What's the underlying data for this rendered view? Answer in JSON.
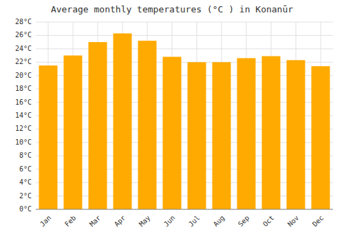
{
  "chart_data": {
    "type": "bar",
    "title": "Average monthly temperatures (°C ) in Konanūr",
    "categories": [
      "Jan",
      "Feb",
      "Mar",
      "Apr",
      "May",
      "Jun",
      "Jul",
      "Aug",
      "Sep",
      "Oct",
      "Nov",
      "Dec"
    ],
    "values": [
      21.5,
      23.0,
      25.0,
      26.3,
      25.2,
      22.8,
      22.0,
      22.0,
      22.6,
      22.9,
      22.3,
      21.4
    ],
    "color": "#FFAA00",
    "ylim": [
      0,
      28
    ],
    "yticks": [
      {
        "value": 0,
        "label": "0°C"
      },
      {
        "value": 2,
        "label": "2°C"
      },
      {
        "value": 4,
        "label": "4°C"
      },
      {
        "value": 6,
        "label": "6°C"
      },
      {
        "value": 8,
        "label": "8°C"
      },
      {
        "value": 10,
        "label": "10°C"
      },
      {
        "value": 12,
        "label": "12°C"
      },
      {
        "value": 14,
        "label": "14°C"
      },
      {
        "value": 16,
        "label": "16°C"
      },
      {
        "value": 18,
        "label": "18°C"
      },
      {
        "value": 20,
        "label": "20°C"
      },
      {
        "value": 22,
        "label": "22°C"
      },
      {
        "value": 24,
        "label": "24°C"
      },
      {
        "value": 26,
        "label": "26°C"
      },
      {
        "value": 28,
        "label": "28°C"
      }
    ],
    "grid": true
  }
}
